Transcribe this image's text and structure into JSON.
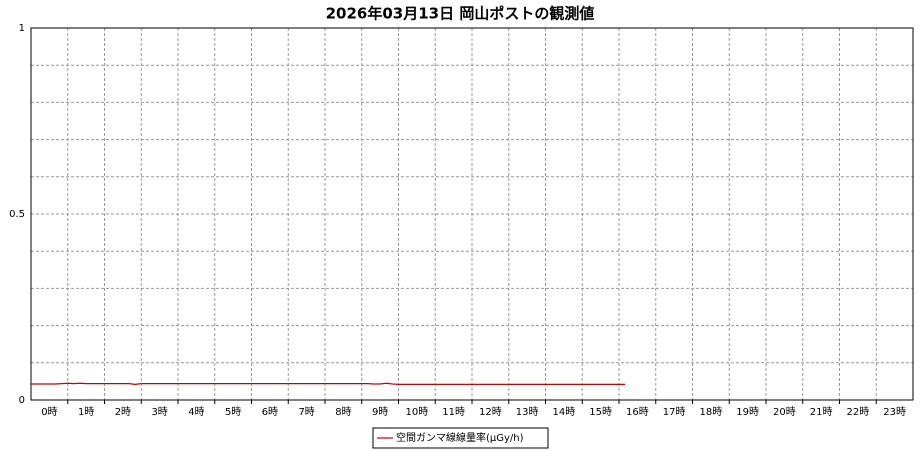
{
  "chart_data": {
    "type": "line",
    "title": "2026年03月13日 岡山ポストの観測値",
    "categories": [
      "0時",
      "1時",
      "2時",
      "3時",
      "4時",
      "5時",
      "6時",
      "7時",
      "8時",
      "9時",
      "10時",
      "11時",
      "12時",
      "13時",
      "14時",
      "15時",
      "16時",
      "17時",
      "18時",
      "19時",
      "20時",
      "21時",
      "22時",
      "23時"
    ],
    "xlim": [
      0,
      1440
    ],
    "ylim": [
      0,
      1
    ],
    "yticks": [
      0,
      0.5,
      1
    ],
    "yminor": [
      0.1,
      0.2,
      0.3,
      0.4,
      0.6,
      0.7,
      0.8,
      0.9
    ],
    "grid": true,
    "legend": "bottom",
    "series": [
      {
        "name": "空間ガンマ線線量率(μGy/h)",
        "color": "#cc0000",
        "x": [
          0,
          10,
          20,
          30,
          40,
          50,
          60,
          70,
          80,
          90,
          100,
          110,
          120,
          130,
          140,
          150,
          160,
          170,
          180,
          190,
          200,
          210,
          220,
          230,
          240,
          250,
          260,
          270,
          280,
          290,
          300,
          310,
          320,
          330,
          340,
          350,
          360,
          370,
          380,
          390,
          400,
          410,
          420,
          430,
          440,
          450,
          460,
          470,
          480,
          490,
          500,
          510,
          520,
          530,
          540,
          550,
          560,
          570,
          580,
          590,
          600,
          610,
          620,
          630,
          640,
          650,
          660,
          670,
          680,
          690,
          700,
          710,
          720,
          730,
          740,
          750,
          760,
          770,
          780,
          790,
          800,
          810,
          820,
          830,
          840,
          850,
          860,
          870,
          880,
          890,
          900,
          910,
          920,
          930,
          940,
          950,
          960,
          970
        ],
        "values": [
          0.043,
          0.043,
          0.043,
          0.043,
          0.043,
          0.044,
          0.045,
          0.044,
          0.045,
          0.044,
          0.044,
          0.044,
          0.044,
          0.044,
          0.044,
          0.044,
          0.044,
          0.042,
          0.044,
          0.044,
          0.044,
          0.044,
          0.044,
          0.044,
          0.044,
          0.044,
          0.044,
          0.044,
          0.044,
          0.044,
          0.044,
          0.044,
          0.044,
          0.044,
          0.044,
          0.044,
          0.044,
          0.044,
          0.044,
          0.044,
          0.044,
          0.044,
          0.044,
          0.044,
          0.044,
          0.044,
          0.044,
          0.044,
          0.044,
          0.044,
          0.044,
          0.044,
          0.044,
          0.044,
          0.044,
          0.044,
          0.043,
          0.043,
          0.045,
          0.043,
          0.042,
          0.042,
          0.042,
          0.042,
          0.042,
          0.042,
          0.042,
          0.042,
          0.042,
          0.042,
          0.042,
          0.042,
          0.042,
          0.042,
          0.042,
          0.042,
          0.042,
          0.042,
          0.042,
          0.042,
          0.042,
          0.042,
          0.042,
          0.042,
          0.042,
          0.042,
          0.042,
          0.042,
          0.042,
          0.042,
          0.042,
          0.042,
          0.042,
          0.042,
          0.042,
          0.042,
          0.042,
          0.042
        ]
      }
    ]
  }
}
